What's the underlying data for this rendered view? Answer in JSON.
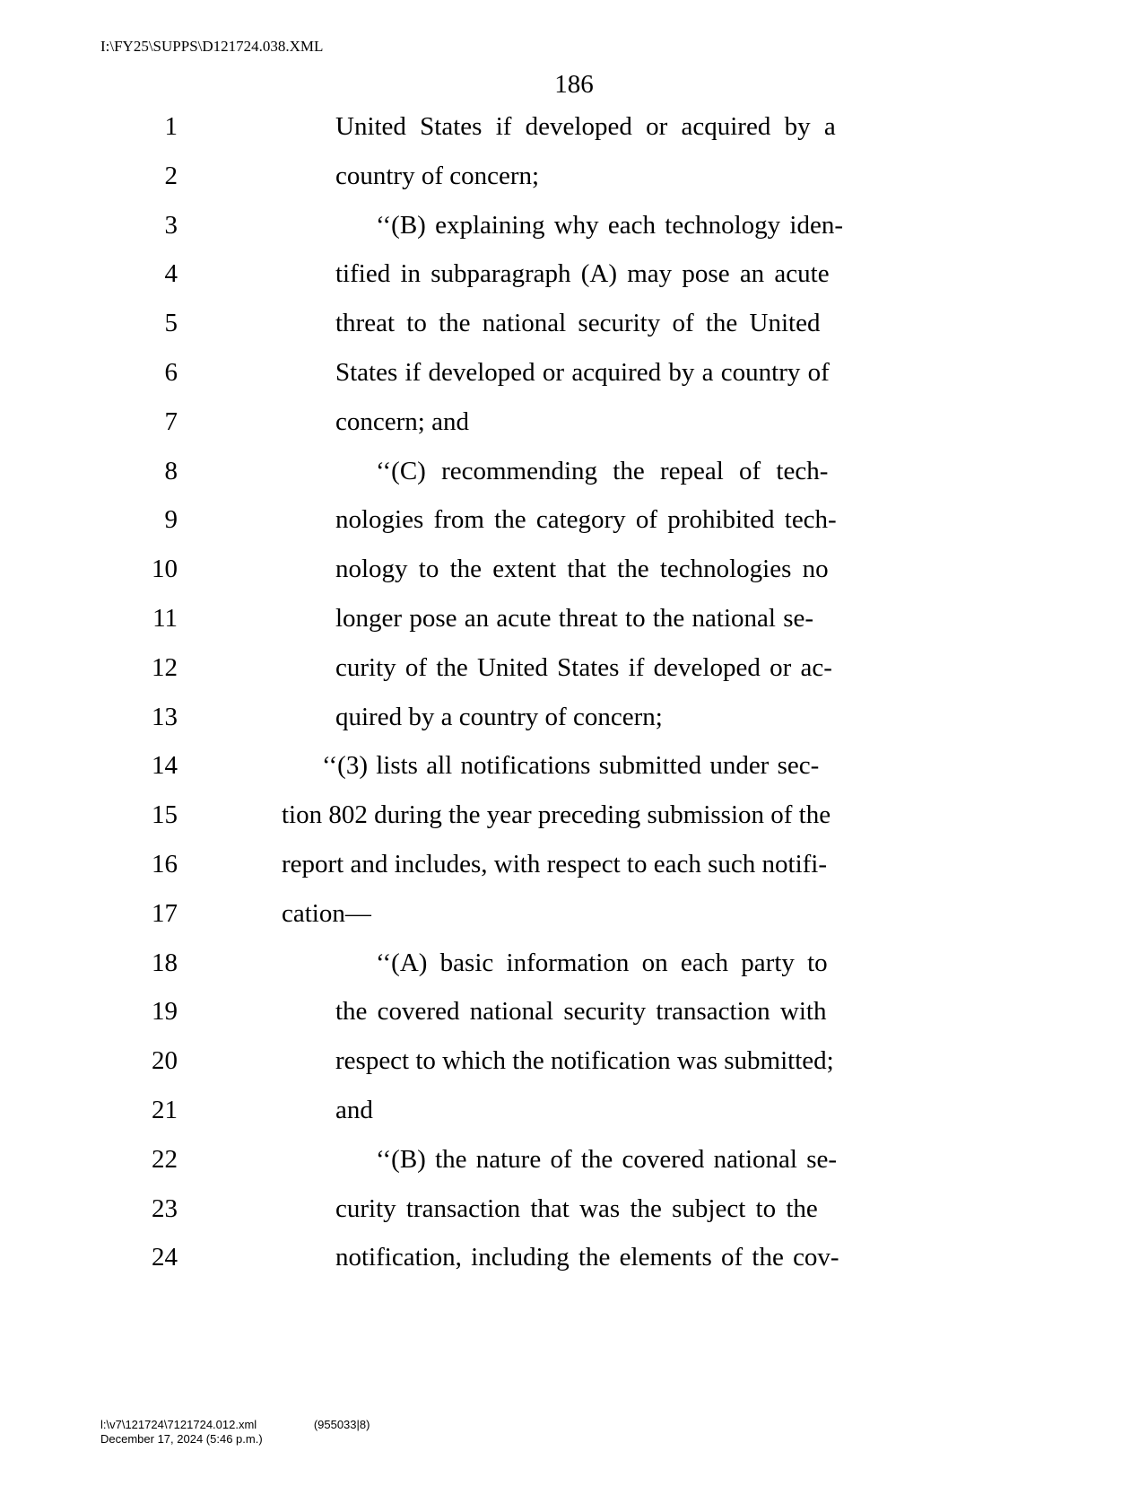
{
  "header_path": "I:\\FY25\\SUPPS\\D121724.038.XML",
  "page_number": "186",
  "lines": [
    {
      "n": "1",
      "indent": 130,
      "text": "United  States  if  developed  or  acquired  by  a",
      "ws": 8
    },
    {
      "n": "2",
      "indent": 130,
      "text": "country of concern;",
      "ws": 0
    },
    {
      "n": "3",
      "indent": 175,
      "text": "‘‘(B)  explaining  why  each  technology  iden-",
      "ws": 3
    },
    {
      "n": "4",
      "indent": 130,
      "text": "tified  in  subparagraph  (A)  may  pose  an  acute",
      "ws": 4
    },
    {
      "n": "5",
      "indent": 130,
      "text": "threat  to  the  national  security  of  the  United",
      "ws": 6
    },
    {
      "n": "6",
      "indent": 130,
      "text": "States if developed or acquired by a country of",
      "ws": 1
    },
    {
      "n": "7",
      "indent": 130,
      "text": "concern; and",
      "ws": 0
    },
    {
      "n": "8",
      "indent": 175,
      "text": "‘‘(C)   recommending   the   repeal   of   tech-",
      "ws": 10
    },
    {
      "n": "9",
      "indent": 130,
      "text": "nologies  from  the  category  of  prohibited  tech-",
      "ws": 4
    },
    {
      "n": "10",
      "indent": 130,
      "text": "nology  to  the  extent  that  the  technologies  no",
      "ws": 5
    },
    {
      "n": "11",
      "indent": 130,
      "text": "longer pose an acute threat to the national se-",
      "ws": 1
    },
    {
      "n": "12",
      "indent": 130,
      "text": "curity  of  the  United  States  if  developed  or  ac-",
      "ws": 3
    },
    {
      "n": "13",
      "indent": 130,
      "text": "quired by a country of concern;",
      "ws": 0
    },
    {
      "n": "14",
      "indent": 115,
      "text": "‘‘(3)  lists  all  notifications  submitted  under  sec-",
      "ws": 2
    },
    {
      "n": "15",
      "indent": 70,
      "text": "tion 802 during the year preceding submission of the",
      "ws": 0
    },
    {
      "n": "16",
      "indent": 70,
      "text": "report and includes, with respect to each such notifi-",
      "ws": 0
    },
    {
      "n": "17",
      "indent": 70,
      "text": "cation—",
      "ws": 0
    },
    {
      "n": "18",
      "indent": 175,
      "text": "‘‘(A)   basic   information   on   each   party   to",
      "ws": 7
    },
    {
      "n": "19",
      "indent": 130,
      "text": "the  covered  national  security  transaction  with",
      "ws": 4
    },
    {
      "n": "20",
      "indent": 130,
      "text": "respect to which the notification was submitted;",
      "ws": 0
    },
    {
      "n": "21",
      "indent": 130,
      "text": "and",
      "ws": 0
    },
    {
      "n": "22",
      "indent": 175,
      "text": "‘‘(B)  the  nature  of  the  covered  national  se-",
      "ws": 3
    },
    {
      "n": "23",
      "indent": 130,
      "text": "curity  transaction  that  was  the  subject  to  the",
      "ws": 4
    },
    {
      "n": "24",
      "indent": 130,
      "text": "notification,  including  the  elements  of  the  cov-",
      "ws": 3
    }
  ],
  "footer": {
    "path": "l:\\v7\\121724\\7121724.012.xml",
    "meta": "(955033|8)",
    "date": "December 17, 2024 (5:46 p.m.)"
  }
}
